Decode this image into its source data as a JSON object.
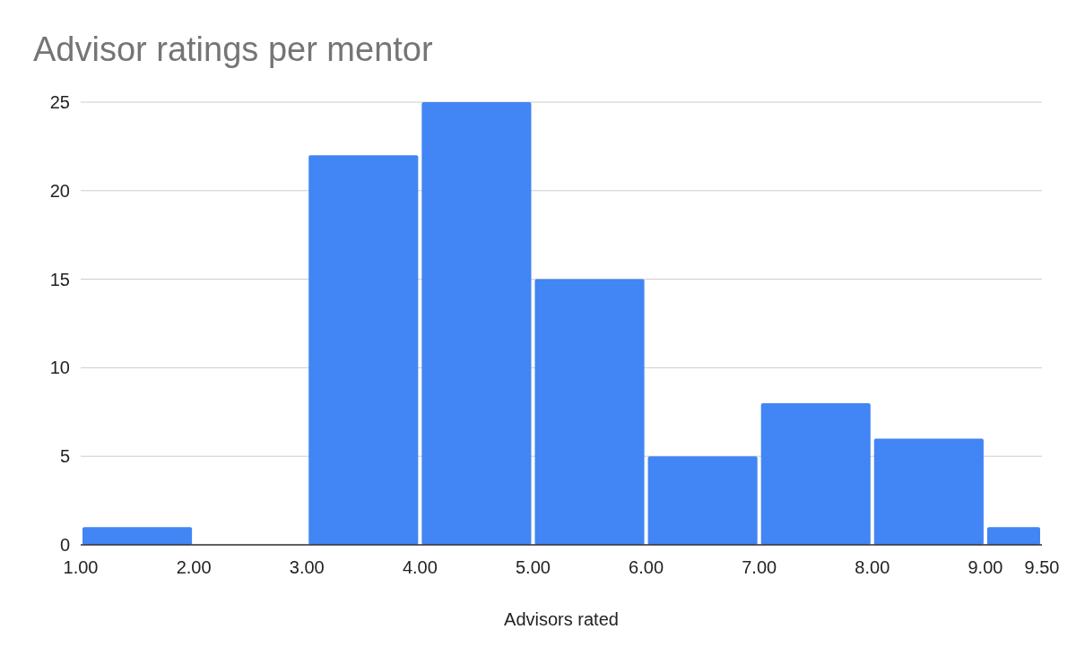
{
  "chart_data": {
    "type": "histogram",
    "title": "Advisor ratings per mentor",
    "xlabel": "Advisors rated",
    "bins": [
      1,
      2,
      3,
      4,
      5,
      6,
      7,
      8,
      9,
      9.5
    ],
    "values": [
      1,
      0,
      22,
      25,
      15,
      5,
      8,
      6,
      1
    ],
    "color": "#4285f4",
    "xlim": [
      1,
      9.5
    ],
    "xticks": [
      {
        "value": 1,
        "label": "1.00"
      },
      {
        "value": 2,
        "label": "2.00"
      },
      {
        "value": 3,
        "label": "3.00"
      },
      {
        "value": 4,
        "label": "4.00"
      },
      {
        "value": 5,
        "label": "5.00"
      },
      {
        "value": 6,
        "label": "6.00"
      },
      {
        "value": 7,
        "label": "7.00"
      },
      {
        "value": 8,
        "label": "8.00"
      },
      {
        "value": 9,
        "label": "9.00"
      },
      {
        "value": 9.5,
        "label": "9.50"
      }
    ],
    "ylim": [
      0,
      25
    ],
    "yticks": [
      0,
      5,
      10,
      15,
      20,
      25
    ],
    "grid": "y"
  }
}
